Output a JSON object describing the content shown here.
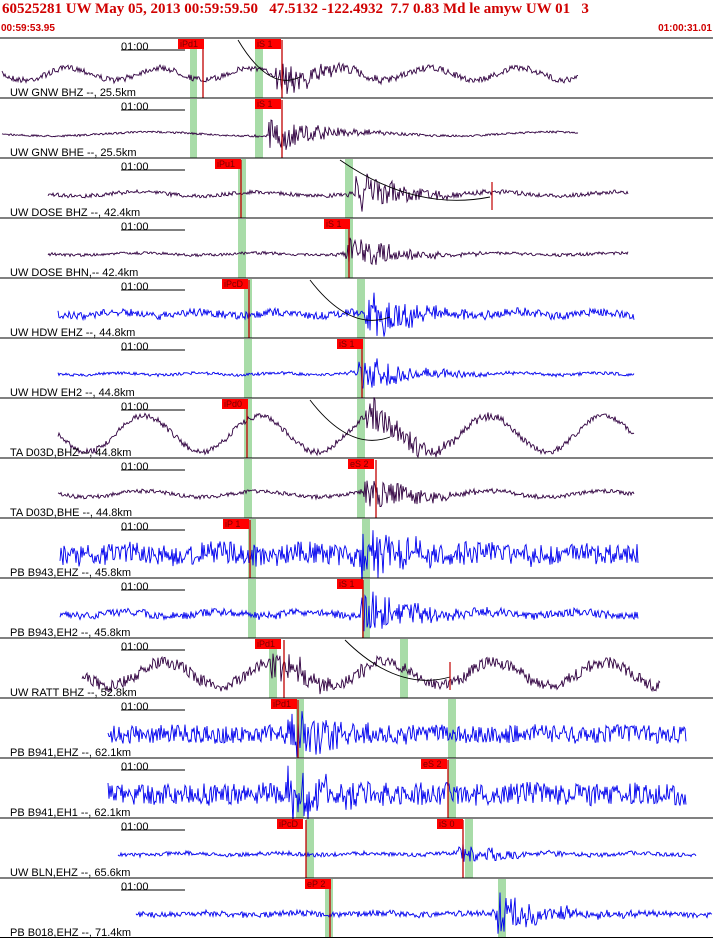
{
  "header": {
    "title": "60525281 UW May 05, 2013 00:59:59.50   47.5132 -122.4932  7.7 0.83 Md le amyw UW 01   3",
    "time_start": "00:59:53.95",
    "time_end": "01:00:31.01"
  },
  "tick_label": "01:00",
  "colors": {
    "title": "#d00000",
    "pick_box": "#ff0000",
    "pick_line": "#c00000",
    "window": "#a8dca8",
    "trace_dark": "#300040",
    "trace_blue": "#0000ee"
  },
  "traces": [
    {
      "label": "UW GNW BHZ --, 25.5km",
      "color": "dark",
      "picks": [
        {
          "text": "iPd1"
        },
        {
          "text": "iS 1"
        }
      ]
    },
    {
      "label": "UW GNW BHE --, 25.5km",
      "color": "dark",
      "picks": [
        {
          "text": "iS 1"
        }
      ]
    },
    {
      "label": "UW DOSE BHZ --, 42.4km",
      "color": "dark",
      "picks": [
        {
          "text": "iPu1"
        }
      ]
    },
    {
      "label": "UW DOSE BHN,-- 42.4km",
      "color": "dark",
      "picks": [
        {
          "text": "iS 1"
        }
      ]
    },
    {
      "label": "UW HDW EHZ --, 44.8km",
      "color": "blue",
      "picks": [
        {
          "text": "iPcD"
        }
      ]
    },
    {
      "label": "UW HDW EH2 --, 44.8km",
      "color": "blue",
      "picks": [
        {
          "text": "iS 1"
        }
      ]
    },
    {
      "label": "TA D03D,BHZ --, 44.8km",
      "color": "dark",
      "picks": [
        {
          "text": "iPd0"
        }
      ]
    },
    {
      "label": "TA D03D,BHE --, 44.8km",
      "color": "dark",
      "picks": [
        {
          "text": "eS 2"
        }
      ]
    },
    {
      "label": "PB B943,EHZ --, 45.8km",
      "color": "blue",
      "picks": [
        {
          "text": "iP 1"
        }
      ]
    },
    {
      "label": "PB B943,EH2 --, 45.8km",
      "color": "blue",
      "picks": [
        {
          "text": "iS 1"
        }
      ]
    },
    {
      "label": "UW RATT BHZ --, 52.8km",
      "color": "dark",
      "picks": [
        {
          "text": "iPd1"
        }
      ]
    },
    {
      "label": "PB B941,EHZ --, 62.1km",
      "color": "blue",
      "picks": [
        {
          "text": "iPd1"
        }
      ]
    },
    {
      "label": "PB B941,EH1 --, 62.1km",
      "color": "blue",
      "picks": [
        {
          "text": "eS 2"
        }
      ]
    },
    {
      "label": "UW BLN,EHZ --, 65.6km",
      "color": "blue",
      "picks": [
        {
          "text": "iPcD"
        },
        {
          "text": "iS 0"
        }
      ]
    },
    {
      "label": "PB B018,EHZ --, 71.4km",
      "color": "blue",
      "picks": [
        {
          "text": "eP 2"
        }
      ]
    }
  ]
}
